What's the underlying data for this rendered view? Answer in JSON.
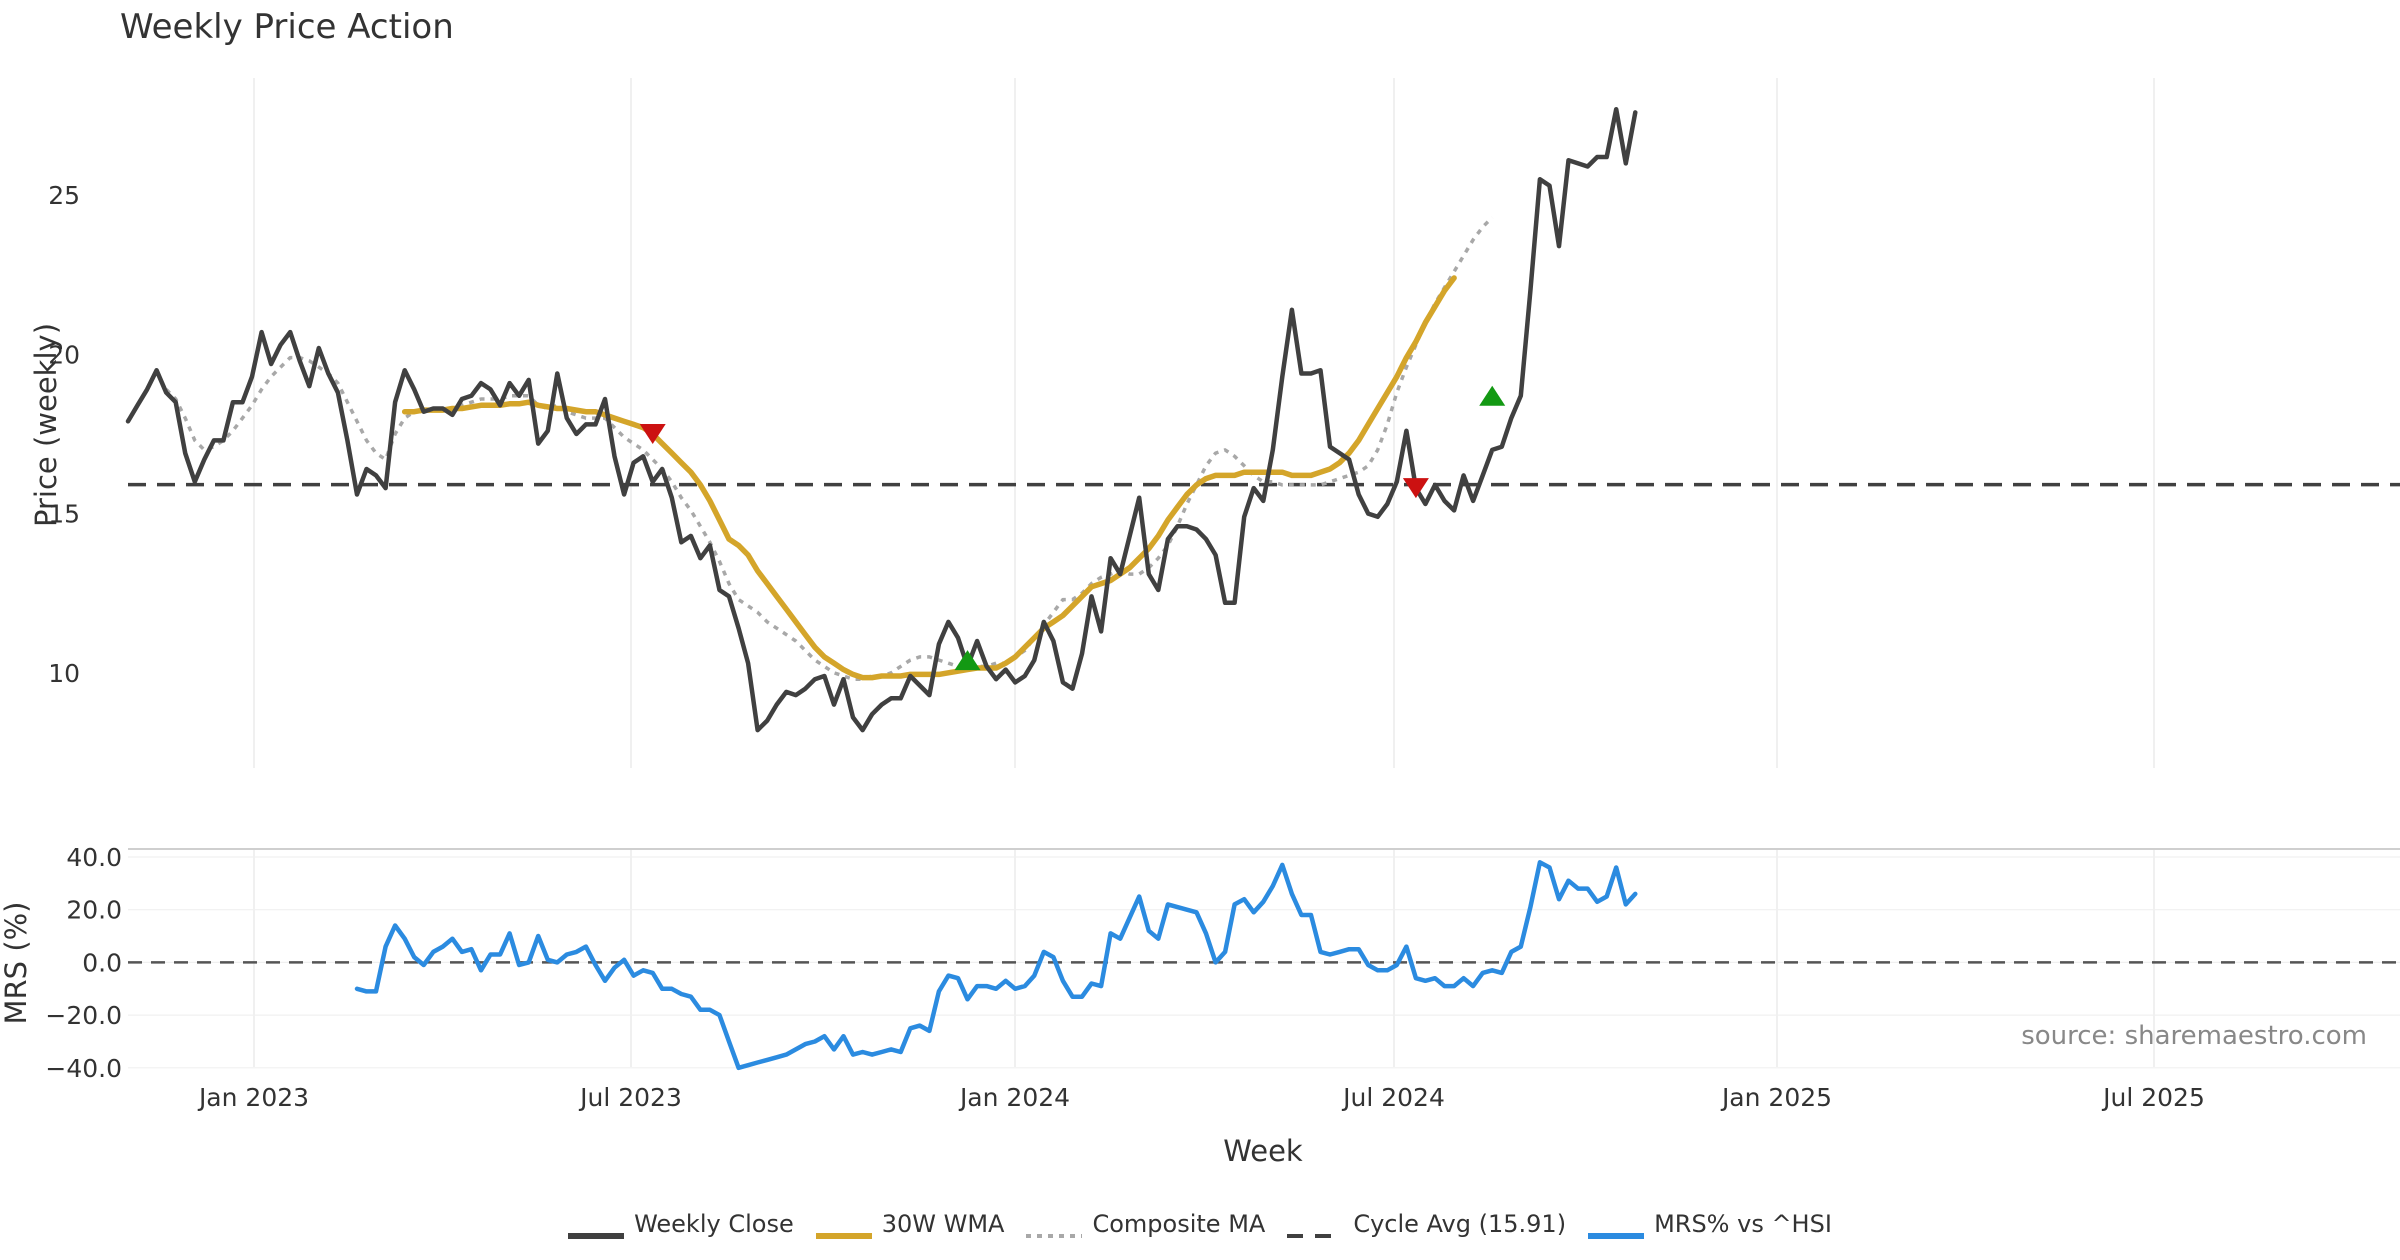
{
  "chart_data": [
    {
      "type": "line",
      "title": "Weekly Price Action",
      "ylabel": "Price (weekly)",
      "ylim": [
        7.0,
        28.5
      ],
      "y_ticks": [
        10,
        15,
        20,
        25
      ],
      "x_ticks": [
        "Jan 2023",
        "Jul 2023",
        "Jan 2024",
        "Jul 2024",
        "Jan 2025",
        "Jul 2025"
      ],
      "x_label": "Week",
      "cycle_avg": 15.91,
      "series": [
        {
          "name": "Weekly Close",
          "color": "#404040",
          "style": "solid",
          "values": [
            17.9,
            18.4,
            18.9,
            19.5,
            18.8,
            18.5,
            16.9,
            16.0,
            16.7,
            17.3,
            17.3,
            18.5,
            18.5,
            19.3,
            20.7,
            19.7,
            20.3,
            20.7,
            19.8,
            19.0,
            20.2,
            19.4,
            18.8,
            17.3,
            15.6,
            16.4,
            16.2,
            15.8,
            18.5,
            19.5,
            18.9,
            18.2,
            18.3,
            18.3,
            18.1,
            18.6,
            18.7,
            19.1,
            18.9,
            18.4,
            19.1,
            18.7,
            19.2,
            17.2,
            17.6,
            19.4,
            18.0,
            17.5,
            17.8,
            17.8,
            18.6,
            16.8,
            15.6,
            16.6,
            16.8,
            16.0,
            16.4,
            15.5,
            14.1,
            14.3,
            13.6,
            14.0,
            12.6,
            12.4,
            11.4,
            10.3,
            8.2,
            8.5,
            9.0,
            9.4,
            9.3,
            9.5,
            9.8,
            9.9,
            9.0,
            9.8,
            8.6,
            8.2,
            8.7,
            9.0,
            9.2,
            9.2,
            9.9,
            9.6,
            9.3,
            10.9,
            11.6,
            11.1,
            10.2,
            11.0,
            10.2,
            9.8,
            10.1,
            9.7,
            9.9,
            10.4,
            11.6,
            11.0,
            9.7,
            9.5,
            10.6,
            12.4,
            11.3,
            13.6,
            13.1,
            14.3,
            15.5,
            13.1,
            12.6,
            14.2,
            14.6,
            14.6,
            14.5,
            14.2,
            13.7,
            12.2,
            12.2,
            14.9,
            15.8,
            15.4,
            17.0,
            19.3,
            21.4,
            19.4,
            19.4,
            19.5,
            17.1,
            16.9,
            16.7,
            15.6,
            15.0,
            14.9,
            15.3,
            16.0,
            17.6,
            15.8,
            15.3,
            15.9,
            15.4,
            15.1,
            16.2,
            15.4,
            16.2,
            17.0,
            17.1,
            18.0,
            18.7,
            22.0,
            25.5,
            25.3,
            23.4,
            26.1,
            26.0,
            25.9,
            26.2,
            26.2,
            27.7,
            26.0,
            27.6
          ]
        },
        {
          "name": "30W WMA",
          "color": "#d4a52a",
          "style": "solid",
          "values": [
            null,
            null,
            null,
            null,
            null,
            null,
            null,
            null,
            null,
            null,
            null,
            null,
            null,
            null,
            null,
            null,
            null,
            null,
            null,
            null,
            null,
            null,
            null,
            null,
            null,
            null,
            null,
            null,
            null,
            18.2,
            18.2,
            18.25,
            18.25,
            18.25,
            18.3,
            18.3,
            18.35,
            18.4,
            18.4,
            18.4,
            18.45,
            18.45,
            18.5,
            18.4,
            18.35,
            18.3,
            18.3,
            18.25,
            18.2,
            18.2,
            18.1,
            18.0,
            17.9,
            17.8,
            17.7,
            17.5,
            17.2,
            16.9,
            16.6,
            16.3,
            15.9,
            15.4,
            14.8,
            14.2,
            14.0,
            13.7,
            13.2,
            12.8,
            12.4,
            12.0,
            11.6,
            11.2,
            10.8,
            10.5,
            10.3,
            10.1,
            9.95,
            9.85,
            9.85,
            9.9,
            9.9,
            9.9,
            9.95,
            9.95,
            9.95,
            9.95,
            10.0,
            10.05,
            10.1,
            10.15,
            10.15,
            10.15,
            10.3,
            10.5,
            10.8,
            11.1,
            11.4,
            11.6,
            11.8,
            12.1,
            12.4,
            12.7,
            12.8,
            12.9,
            13.1,
            13.3,
            13.6,
            13.9,
            14.3,
            14.8,
            15.2,
            15.6,
            15.9,
            16.1,
            16.2,
            16.2,
            16.2,
            16.3,
            16.3,
            16.3,
            16.3,
            16.3,
            16.2,
            16.2,
            16.2,
            16.3,
            16.4,
            16.6,
            16.9,
            17.3,
            17.8,
            18.3,
            18.8,
            19.3,
            19.9,
            20.4,
            21.0,
            21.5,
            22.0,
            22.4
          ]
        },
        {
          "name": "Composite MA",
          "color": "#a8a8a8",
          "style": "dotted",
          "values": [
            null,
            null,
            null,
            null,
            18.9,
            18.6,
            18.0,
            17.3,
            17.0,
            17.1,
            17.3,
            17.6,
            18.0,
            18.4,
            18.9,
            19.3,
            19.6,
            19.9,
            19.9,
            19.8,
            19.6,
            19.4,
            19.1,
            18.5,
            17.9,
            17.3,
            16.9,
            16.7,
            17.5,
            18.0,
            18.2,
            18.2,
            18.3,
            18.3,
            18.3,
            18.4,
            18.5,
            18.6,
            18.6,
            18.6,
            18.7,
            18.7,
            18.7,
            18.4,
            18.3,
            18.4,
            18.2,
            18.1,
            18.0,
            18.0,
            18.0,
            17.7,
            17.4,
            17.2,
            17.0,
            16.7,
            16.4,
            16.0,
            15.5,
            15.1,
            14.6,
            14.1,
            13.5,
            12.8,
            12.3,
            12.1,
            11.9,
            11.6,
            11.4,
            11.2,
            11.0,
            10.7,
            10.4,
            10.2,
            10.0,
            9.9,
            9.8,
            9.8,
            9.9,
            9.9,
            10.0,
            10.2,
            10.4,
            10.5,
            10.5,
            10.4,
            10.3,
            10.2,
            10.2,
            10.2,
            10.2,
            10.3,
            10.3,
            10.5,
            10.7,
            11.1,
            11.5,
            11.9,
            12.3,
            12.3,
            12.5,
            12.8,
            13.0,
            13.1,
            13.2,
            13.1,
            13.1,
            13.3,
            13.6,
            14.0,
            14.6,
            15.3,
            15.9,
            16.5,
            16.9,
            17.0,
            16.8,
            16.5,
            16.2,
            16.0,
            16.0,
            15.9,
            15.9,
            15.9,
            15.9,
            15.9,
            16.0,
            16.1,
            16.2,
            16.3,
            16.5,
            17.0,
            17.8,
            18.8,
            19.6,
            20.3,
            21.0,
            21.6,
            22.1,
            22.6,
            23.1,
            23.6,
            24.0,
            24.3
          ]
        }
      ],
      "signals": [
        {
          "type": "sell",
          "week": 55,
          "value": 17.5,
          "color": "#cc1111"
        },
        {
          "type": "buy",
          "week": 88,
          "value": 10.4,
          "color": "#139913"
        },
        {
          "type": "sell",
          "week": 135,
          "value": 15.8,
          "color": "#cc1111"
        },
        {
          "type": "buy",
          "week": 143,
          "value": 18.7,
          "color": "#139913"
        }
      ]
    },
    {
      "type": "line",
      "ylabel": "MRS (%)",
      "ylim": [
        -42,
        43
      ],
      "y_ticks": [
        -40.0,
        -20.0,
        0.0,
        20.0,
        40.0
      ],
      "y_tick_labels": [
        "−40.0",
        "−20.0",
        "0.0",
        "20.0",
        "40.0"
      ],
      "series": [
        {
          "name": "MRS% vs ^HSI",
          "color": "#2b8be0",
          "style": "solid",
          "values": [
            null,
            null,
            null,
            null,
            null,
            null,
            null,
            null,
            null,
            null,
            null,
            null,
            null,
            null,
            null,
            null,
            null,
            null,
            null,
            null,
            null,
            null,
            null,
            null,
            -10,
            -11,
            -11,
            6,
            14,
            9,
            2,
            -1,
            4,
            6,
            9,
            4,
            5,
            -3,
            3,
            3,
            11,
            -1,
            0,
            10,
            1,
            0,
            3,
            4,
            6,
            -1,
            -7,
            -2,
            1,
            -5,
            -3,
            -4,
            -10,
            -10,
            -12,
            -13,
            -18,
            -18,
            -20,
            -30,
            -40,
            -39,
            -38,
            -37,
            -36,
            -35,
            -33,
            -31,
            -30,
            -28,
            -33,
            -28,
            -35,
            -34,
            -35,
            -34,
            -33,
            -34,
            -25,
            -24,
            -26,
            -11,
            -5,
            -6,
            -14,
            -9,
            -9,
            -10,
            -7,
            -10,
            -9,
            -5,
            4,
            2,
            -7,
            -13,
            -13,
            -8,
            -9,
            11,
            9,
            17,
            25,
            12,
            9,
            22,
            21,
            20,
            19,
            11,
            0,
            4,
            22,
            24,
            19,
            23,
            29,
            37,
            26,
            18,
            18,
            4,
            3,
            4,
            5,
            5,
            -1,
            -3,
            -3,
            -1,
            6,
            -6,
            -7,
            -6,
            -9,
            -9,
            -6,
            -9,
            -4,
            -3,
            -4,
            4,
            6,
            21,
            38,
            36,
            24,
            31,
            28,
            28,
            23,
            25,
            36,
            22,
            26
          ]
        }
      ],
      "zero_line": 0.0,
      "annotation": "source: sharemaestro.com"
    }
  ],
  "legend": [
    {
      "label": "Weekly Close",
      "color": "#404040",
      "style": "solid"
    },
    {
      "label": "30W WMA",
      "color": "#d4a52a",
      "style": "solid"
    },
    {
      "label": "Composite MA",
      "color": "#a8a8a8",
      "style": "dotted"
    },
    {
      "label": "Cycle Avg (15.91)",
      "color": "#404040",
      "style": "dashed"
    },
    {
      "label": "MRS% vs ^HSI",
      "color": "#2b8be0",
      "style": "solid"
    }
  ]
}
